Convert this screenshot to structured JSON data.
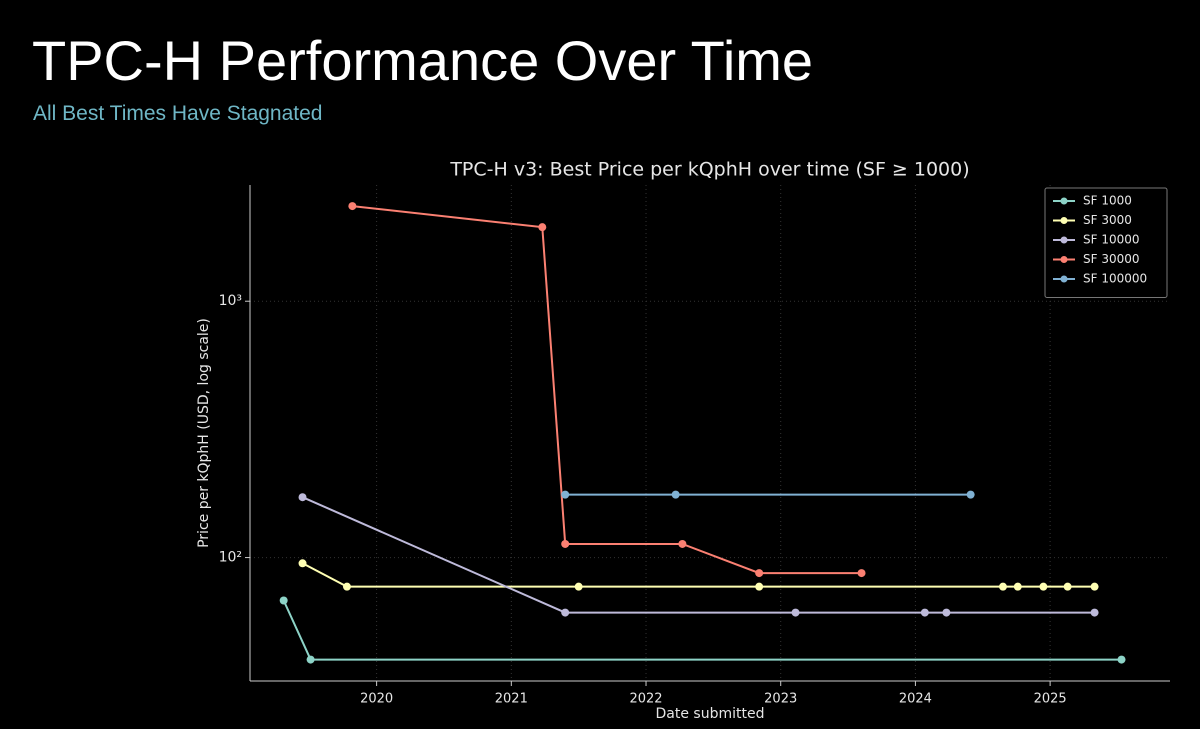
{
  "header": {
    "title": "TPC-H Performance Over Time",
    "subtitle": "All Best Times Have Stagnated"
  },
  "chart_data": {
    "type": "line",
    "title": "TPC-H v3: Best Price per kQphH over time (SF ≥ 1000)",
    "x_label": "Date submitted",
    "y_label": "Price per kQphH (USD, log scale)",
    "log_y": true,
    "grid": true,
    "legend": "upper right",
    "xlim": [
      2019.06,
      2025.89
    ],
    "xticks": [
      2020,
      2021,
      2022,
      2023,
      2024,
      2025
    ],
    "ylim": [
      33,
      2840
    ],
    "yticks": [
      {
        "value": 100,
        "label": "10²"
      },
      {
        "value": 1000,
        "label": "10³"
      }
    ],
    "series": [
      {
        "name": "SF 1000",
        "color": "#8dd3c7",
        "x": [
          2019.31,
          2019.51,
          2025.53
        ],
        "values": [
          68,
          40,
          40
        ]
      },
      {
        "name": "SF 3000",
        "color": "#ffffb3",
        "x": [
          2019.45,
          2019.78,
          2021.5,
          2022.84,
          2024.65,
          2024.76,
          2024.95,
          2025.13,
          2025.33
        ],
        "values": [
          95,
          77,
          77,
          77,
          77,
          77,
          77,
          77,
          77
        ]
      },
      {
        "name": "SF 10000",
        "color": "#bebada",
        "x": [
          2019.45,
          2021.4,
          2023.11,
          2024.07,
          2024.23,
          2025.33
        ],
        "values": [
          172,
          61,
          61,
          61,
          61,
          61
        ]
      },
      {
        "name": "SF 30000",
        "color": "#fb8072",
        "x": [
          2019.82,
          2021.23,
          2021.4,
          2022.27,
          2022.84,
          2023.6
        ],
        "values": [
          2350,
          1945,
          113,
          113,
          87,
          87
        ]
      },
      {
        "name": "SF 100000",
        "color": "#80b1d3",
        "x": [
          2021.4,
          2022.22,
          2024.41
        ],
        "values": [
          176,
          176,
          176
        ]
      }
    ]
  }
}
